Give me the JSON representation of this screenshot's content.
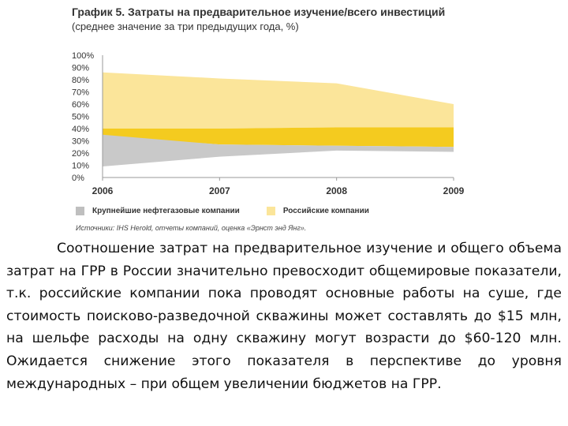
{
  "chart_data": {
    "type": "area",
    "title": "График 5. Затраты на предварительное изучение/всего инвестиций",
    "subtitle": "(среднее значение за три предыдущих года, %)",
    "x": [
      "2006",
      "2007",
      "2008",
      "2009"
    ],
    "y_ticks": [
      "100%",
      "90%",
      "80%",
      "70%",
      "60%",
      "50%",
      "40%",
      "30%",
      "20%",
      "10%",
      "0%"
    ],
    "ylim": [
      0,
      100
    ],
    "series": [
      {
        "name": "Российские компании",
        "band": "upper",
        "low": [
          40,
          40,
          41,
          41
        ],
        "high": [
          86,
          81,
          77,
          60
        ],
        "color": "#fbe59a"
      },
      {
        "name": "Российские компании",
        "band": "core",
        "low": [
          34,
          27,
          26,
          25
        ],
        "high": [
          40,
          40,
          41,
          41
        ],
        "color": "#f4cb1f"
      },
      {
        "name": "Крупнейшие нефтегазовые компании",
        "band": "lower",
        "low": [
          9,
          17,
          22,
          21
        ],
        "high": [
          35,
          27,
          26,
          25
        ],
        "color": "#c9c9c9"
      }
    ],
    "legend": [
      {
        "label": "Крупнейшие нефтегазовые компании",
        "color": "#bfbfbf"
      },
      {
        "label": "Российские компании",
        "color": "#fbe59a"
      }
    ],
    "legend_position": "bottom",
    "grid": false
  },
  "source": "Источники: IHS Herold, отчеты компаний, оценка «Эрнст энд Янг».",
  "body_text": "Соотношение затрат на предварительное изучение и общего объема затрат на ГРР в России значительно превосходит общемировые показатели, т.к. российские компании пока проводят основные работы на суше, где стоимость поисково-разведочной скважины может составлять до $15 млн, на шельфе расходы на одну скважину могут возрасти до $60-120 млн. Ожидается снижение этого показателя в перспективе до уровня международных – при общем увеличении бюджетов на ГРР."
}
